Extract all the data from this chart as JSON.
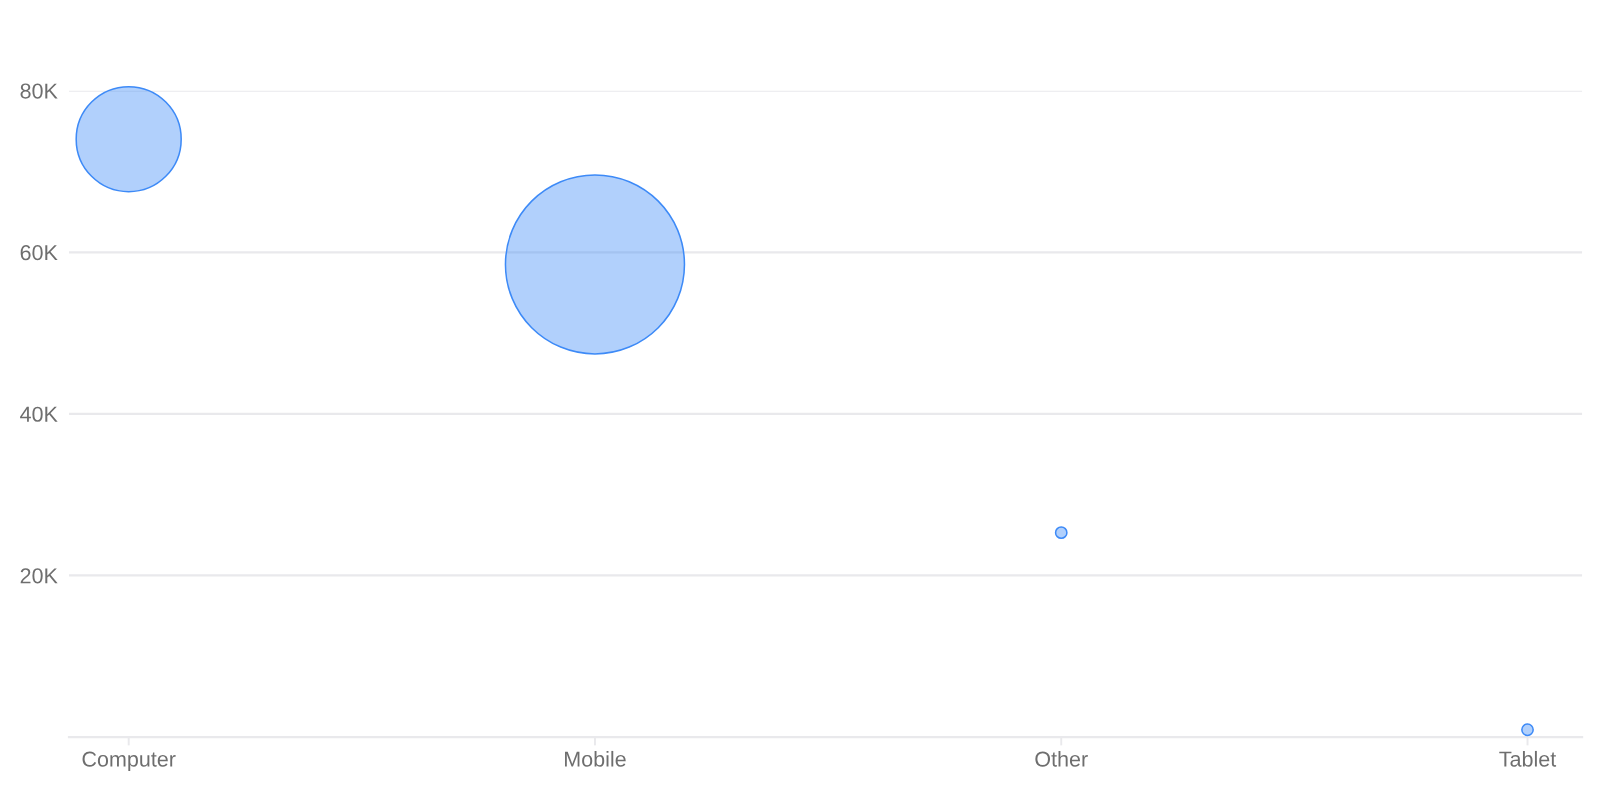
{
  "chart_data": {
    "type": "bubble",
    "categories": [
      "Computer",
      "Mobile",
      "Other",
      "Tablet"
    ],
    "series": [
      {
        "color": "#3d8af7",
        "values": [
          74000,
          58500,
          25300,
          900
        ],
        "sizes": [
          0.344,
          1,
          0.004,
          0.004
        ]
      }
    ],
    "ylim": [
      0,
      80000
    ],
    "yticks": [
      {
        "value": 20000,
        "label": "20K"
      },
      {
        "value": 40000,
        "label": "40K"
      },
      {
        "value": 60000,
        "label": "60K"
      },
      {
        "value": 80000,
        "label": "80K"
      }
    ],
    "grid": "y"
  }
}
